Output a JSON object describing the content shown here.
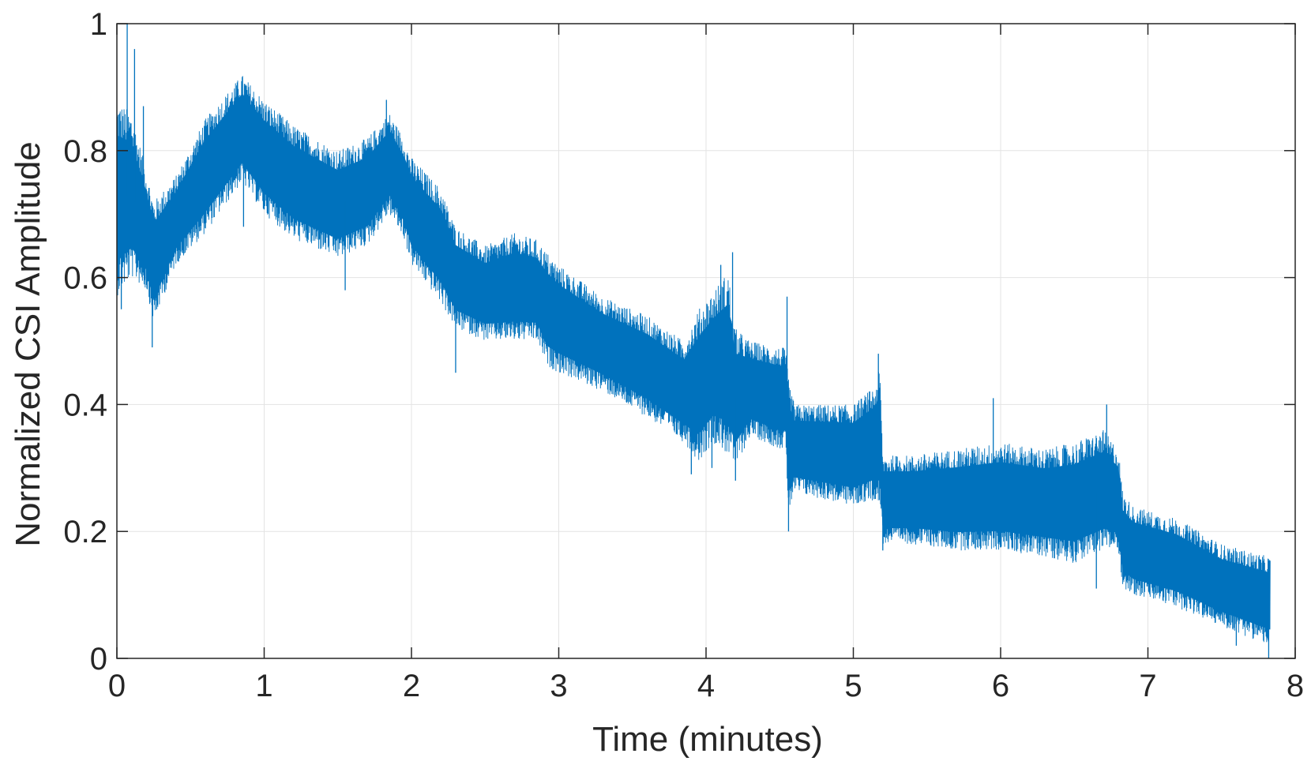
{
  "chart_data": {
    "type": "line",
    "title": "",
    "xlabel": "Time (minutes)",
    "ylabel": "Normalized CSI Amplitude",
    "xlim": [
      0,
      8
    ],
    "ylim": [
      0,
      1
    ],
    "xticks": [
      0,
      1,
      2,
      3,
      4,
      5,
      6,
      7,
      8
    ],
    "yticks": [
      0,
      0.2,
      0.4,
      0.6,
      0.8,
      1
    ],
    "xtick_labels": [
      "0",
      "1",
      "2",
      "3",
      "4",
      "5",
      "6",
      "7",
      "8"
    ],
    "ytick_labels": [
      "0",
      "0.2",
      "0.4",
      "0.6",
      "0.8",
      "1"
    ],
    "grid": true,
    "series": [
      {
        "color": "#0072BD",
        "envelope": {
          "x": [
            0.0,
            0.1,
            0.2,
            0.25,
            0.4,
            0.6,
            0.85,
            1.0,
            1.2,
            1.5,
            1.7,
            1.85,
            1.95,
            2.0,
            2.2,
            2.3,
            2.5,
            2.7,
            2.85,
            2.92,
            3.0,
            3.3,
            3.6,
            3.85,
            3.95,
            4.05,
            4.15,
            4.2,
            4.3,
            4.5,
            4.54,
            4.56,
            4.6,
            4.8,
            5.0,
            5.15,
            5.18,
            5.2,
            5.4,
            5.7,
            6.0,
            6.3,
            6.5,
            6.7,
            6.8,
            6.83,
            6.9,
            7.2,
            7.5,
            7.83
          ],
          "lower": [
            0.57,
            0.6,
            0.58,
            0.53,
            0.62,
            0.67,
            0.75,
            0.7,
            0.66,
            0.63,
            0.65,
            0.7,
            0.66,
            0.62,
            0.56,
            0.52,
            0.5,
            0.5,
            0.5,
            0.46,
            0.45,
            0.42,
            0.38,
            0.34,
            0.31,
            0.34,
            0.32,
            0.3,
            0.35,
            0.33,
            0.33,
            0.23,
            0.26,
            0.25,
            0.24,
            0.25,
            0.24,
            0.18,
            0.18,
            0.17,
            0.17,
            0.16,
            0.15,
            0.17,
            0.17,
            0.11,
            0.1,
            0.08,
            0.05,
            0.02
          ],
          "upper": [
            0.88,
            0.86,
            0.77,
            0.72,
            0.76,
            0.85,
            0.92,
            0.88,
            0.84,
            0.8,
            0.82,
            0.86,
            0.82,
            0.79,
            0.74,
            0.68,
            0.65,
            0.67,
            0.66,
            0.64,
            0.62,
            0.57,
            0.54,
            0.5,
            0.55,
            0.58,
            0.61,
            0.52,
            0.5,
            0.49,
            0.49,
            0.44,
            0.4,
            0.4,
            0.4,
            0.43,
            0.46,
            0.32,
            0.32,
            0.33,
            0.34,
            0.33,
            0.34,
            0.36,
            0.33,
            0.26,
            0.24,
            0.22,
            0.18,
            0.16
          ]
        },
        "spikes": [
          {
            "x": 0.03,
            "y": 0.55
          },
          {
            "x": 0.07,
            "y": 1.0
          },
          {
            "x": 0.12,
            "y": 0.96
          },
          {
            "x": 0.18,
            "y": 0.87
          },
          {
            "x": 0.24,
            "y": 0.49
          },
          {
            "x": 0.27,
            "y": 0.55
          },
          {
            "x": 0.86,
            "y": 0.68
          },
          {
            "x": 1.55,
            "y": 0.58
          },
          {
            "x": 1.83,
            "y": 0.88
          },
          {
            "x": 2.3,
            "y": 0.45
          },
          {
            "x": 3.9,
            "y": 0.29
          },
          {
            "x": 4.04,
            "y": 0.3
          },
          {
            "x": 4.1,
            "y": 0.62
          },
          {
            "x": 4.18,
            "y": 0.64
          },
          {
            "x": 4.2,
            "y": 0.28
          },
          {
            "x": 4.55,
            "y": 0.57
          },
          {
            "x": 4.56,
            "y": 0.2
          },
          {
            "x": 5.17,
            "y": 0.48
          },
          {
            "x": 5.2,
            "y": 0.17
          },
          {
            "x": 5.95,
            "y": 0.41
          },
          {
            "x": 6.72,
            "y": 0.4
          },
          {
            "x": 6.65,
            "y": 0.11
          },
          {
            "x": 7.6,
            "y": 0.02
          },
          {
            "x": 7.82,
            "y": 0.0
          }
        ]
      }
    ]
  }
}
